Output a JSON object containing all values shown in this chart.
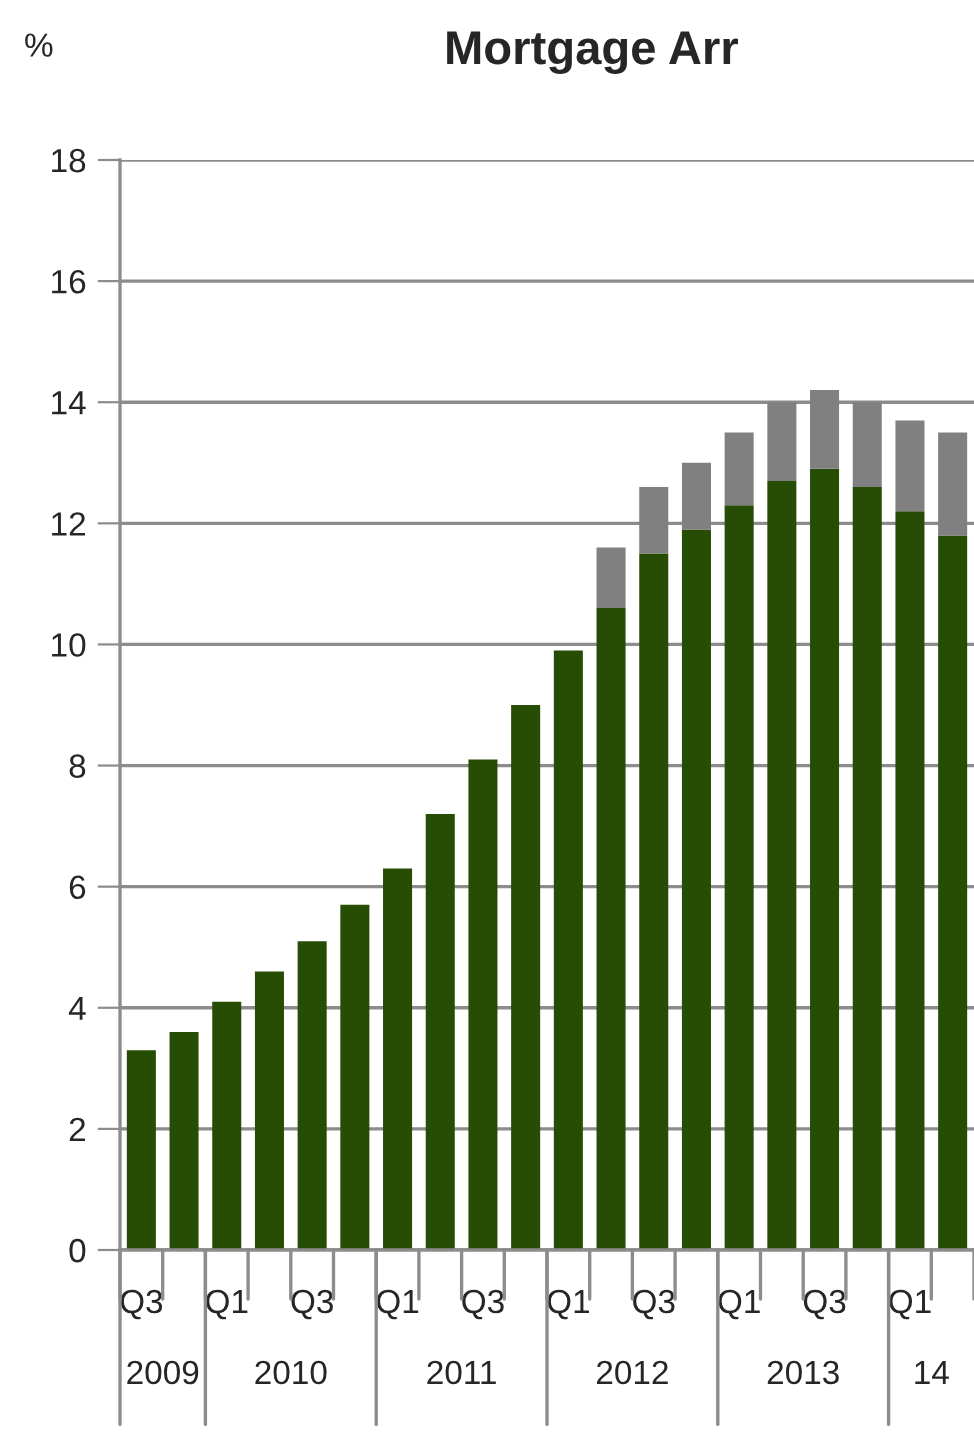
{
  "chart_data": {
    "type": "bar",
    "title": "Mortgage Arr",
    "ylabel": "%",
    "stacked": true,
    "categories": [
      "Q3",
      null,
      "Q1",
      null,
      "Q3",
      null,
      "Q1",
      null,
      "Q3",
      null,
      "Q1",
      null,
      "Q3",
      null,
      "Q1",
      null,
      "Q3",
      null,
      "Q1",
      null
    ],
    "series": [
      {
        "color": "#264d03",
        "values": [
          3.3,
          3.6,
          4.1,
          4.6,
          5.1,
          5.7,
          6.3,
          7.2,
          8.1,
          9.0,
          9.9,
          10.6,
          11.5,
          11.9,
          12.3,
          12.7,
          12.9,
          12.6,
          12.2,
          11.8
        ]
      },
      {
        "color": "#808080",
        "values": [
          null,
          null,
          null,
          null,
          null,
          null,
          null,
          null,
          null,
          null,
          null,
          1.0,
          1.1,
          1.1,
          1.2,
          1.3,
          1.3,
          1.4,
          1.5,
          1.7
        ]
      }
    ],
    "ylim": [
      0,
      18
    ],
    "yticks": [
      0,
      2,
      4,
      6,
      8,
      10,
      12,
      14,
      16,
      18
    ],
    "annotations": [
      "2009",
      "2010",
      "2011",
      "2012",
      "2013",
      "14"
    ],
    "grid": "y",
    "legend": false
  }
}
